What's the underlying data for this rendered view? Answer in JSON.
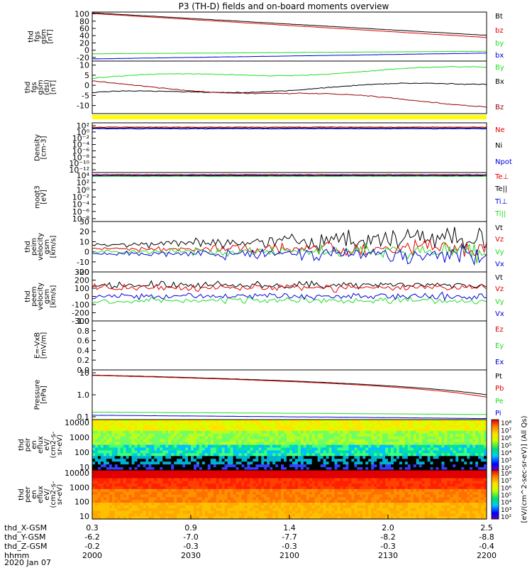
{
  "title": "P3 (TH-D) fields and on-board moments overview",
  "colors": {
    "black": "#000000",
    "red": "#e00000",
    "green": "#22dd22",
    "blue": "#0000dd",
    "yellow": "#ffff00"
  },
  "chart_data": [
    {
      "type": "line",
      "id": "fgs_mag",
      "ylabel": [
        "thd",
        "fgs",
        "gsm",
        "[nT]"
      ],
      "ylim": [
        -30,
        105
      ],
      "yticks": [
        "100",
        "80",
        "60",
        "40",
        "20",
        "0",
        "-20"
      ],
      "ytick_values": [
        100,
        80,
        60,
        40,
        20,
        0,
        -20
      ],
      "series": [
        {
          "name": "Bt",
          "color": "#000000",
          "start": 103,
          "end": 41
        },
        {
          "name": "bz",
          "color": "#e00000",
          "start": 101,
          "end": 35
        },
        {
          "name": "by",
          "color": "#22dd22",
          "start": -10,
          "end": -3
        },
        {
          "name": "bx",
          "color": "#0000dd",
          "start": -24,
          "end": -8
        }
      ]
    },
    {
      "type": "line",
      "id": "fgs_gsm",
      "ylabel": [
        "thd",
        "fgs",
        "gsm",
        "(dsl)",
        "[nT]"
      ],
      "ylim": [
        -14,
        12
      ],
      "yticks": [
        "10",
        "5",
        "0",
        "-5",
        "-10"
      ],
      "ytick_values": [
        10,
        5,
        0,
        -5,
        -10
      ],
      "series": [
        {
          "name": "By",
          "color": "#22dd22",
          "start": 3.5,
          "end": 8.5
        },
        {
          "name": "Bx",
          "color": "#000000",
          "start": -4.5,
          "end": 1
        },
        {
          "name": "Bz",
          "color": "#990000",
          "start": 1,
          "end": -9.5
        }
      ]
    },
    {
      "type": "line",
      "id": "density",
      "ylabel": [
        "Density",
        "[cm-3]"
      ],
      "scale": "log",
      "yticks": [
        "10²",
        "10⁰",
        "10⁻²",
        "10⁻⁴",
        "10⁻⁶",
        "10⁻⁸",
        "10⁻¹⁰",
        "10⁻¹²"
      ],
      "series": [
        {
          "name": "Ne",
          "color": "#e00000"
        },
        {
          "name": "Ni",
          "color": "#000000"
        },
        {
          "name": "Npot",
          "color": "#0000dd"
        }
      ]
    },
    {
      "type": "line",
      "id": "temperature",
      "ylabel": [
        "moqt3",
        "[eV]"
      ],
      "scale": "log",
      "yticks": [
        "10⁴",
        "10²",
        "10⁰",
        "10⁻²",
        "10⁻⁴",
        "10⁻⁶",
        "10⁻⁸"
      ],
      "series": [
        {
          "name": "Te⊥",
          "color": "#e00000"
        },
        {
          "name": "Te||",
          "color": "#000000"
        },
        {
          "name": "Ti⊥",
          "color": "#0000dd"
        },
        {
          "name": "Ti||",
          "color": "#22dd22"
        }
      ]
    },
    {
      "type": "line",
      "id": "peim_velocity",
      "ylabel": [
        "thd",
        "peim",
        "velocity",
        "gsm",
        "[km/s]"
      ],
      "ylim": [
        -20,
        30
      ],
      "yticks": [
        "30",
        "20",
        "10",
        "0",
        "-10",
        "-20"
      ],
      "ytick_values": [
        30,
        20,
        10,
        0,
        -10,
        -20
      ],
      "series": [
        {
          "name": "Vt",
          "color": "#000000"
        },
        {
          "name": "Vz",
          "color": "#e00000"
        },
        {
          "name": "Vy",
          "color": "#22dd22"
        },
        {
          "name": "Vx",
          "color": "#0000dd"
        }
      ]
    },
    {
      "type": "line",
      "id": "peem_velocity",
      "ylabel": [
        "thd",
        "peem",
        "velocity",
        "gsm",
        "[km/s]"
      ],
      "ylim": [
        -300,
        300
      ],
      "yticks": [
        "300",
        "200",
        "100",
        "0",
        "-100",
        "-200",
        "-300"
      ],
      "ytick_values": [
        300,
        200,
        100,
        0,
        -100,
        -200,
        -300
      ],
      "series": [
        {
          "name": "Vt",
          "color": "#000000"
        },
        {
          "name": "Vz",
          "color": "#e00000"
        },
        {
          "name": "Vy",
          "color": "#22dd22"
        },
        {
          "name": "Vx",
          "color": "#0000dd"
        }
      ]
    },
    {
      "type": "line",
      "id": "efield",
      "ylabel": [
        "E=-VxB",
        "[mV/m]"
      ],
      "ylim": [
        0,
        1.0
      ],
      "yticks": [
        "1.0",
        "0.8",
        "0.6",
        "0.4",
        "0.2",
        "0.0"
      ],
      "ytick_values": [
        1.0,
        0.8,
        0.6,
        0.4,
        0.2,
        0.0
      ],
      "series": [
        {
          "name": "Ez",
          "color": "#e00000"
        },
        {
          "name": "Ey",
          "color": "#22dd22"
        },
        {
          "name": "Ex",
          "color": "#0000dd"
        }
      ]
    },
    {
      "type": "line",
      "id": "pressure",
      "ylabel": [
        "Pressure",
        "[nPa]"
      ],
      "scale": "log",
      "ylim": [
        0.1,
        10
      ],
      "yticks": [
        "10",
        "1.0",
        "0.1"
      ],
      "series": [
        {
          "name": "Pt",
          "color": "#000000",
          "start": 6.2,
          "end": 1.0
        },
        {
          "name": "Pb",
          "color": "#e00000",
          "start": 6.0,
          "end": 0.8
        },
        {
          "name": "Pe",
          "color": "#22dd22",
          "start": 0.2,
          "end": 0.16
        },
        {
          "name": "Pi",
          "color": "#0000dd",
          "start": 0.15,
          "end": 0.11
        }
      ]
    },
    {
      "type": "heatmap",
      "id": "peir_eflux",
      "ylabel": [
        "thd",
        "peir",
        "en",
        "eflux",
        "eV/",
        "(cm2-s-",
        "sr-eV)"
      ],
      "yticks": [
        "10000",
        "1000",
        "100",
        "10"
      ]
    },
    {
      "type": "heatmap",
      "id": "peer_eflux",
      "ylabel": [
        "thd",
        "peer",
        "en",
        "eflux",
        "eV/",
        "(cm2-s-",
        "sr-eV)"
      ],
      "yticks": [
        "10000",
        "1000",
        "100",
        "10"
      ]
    }
  ],
  "colorbar": {
    "upper_ticks": [
      "10⁸",
      "10⁷",
      "10⁶",
      "10⁵",
      "10⁴",
      "10³",
      "10²"
    ],
    "lower_ticks": [
      "10⁸",
      "10⁷",
      "10⁶",
      "10⁵",
      "10⁴",
      "10³",
      "10²"
    ],
    "label": "[eV/(cm^2-sec-sr-eV)] (All Qs)"
  },
  "x_axis": {
    "rows": [
      {
        "label": "thd_X-GSM",
        "values": [
          "0.3",
          "0.9",
          "1.4",
          "2.0",
          "2.5"
        ]
      },
      {
        "label": "thd_Y-GSM",
        "values": [
          "-6.2",
          "-7.0",
          "-7.7",
          "-8.2",
          "-8.8"
        ]
      },
      {
        "label": "thd_Z-GSM",
        "values": [
          "-0.2",
          "-0.3",
          "-0.3",
          "-0.3",
          "-0.4"
        ]
      },
      {
        "label": "hhmm",
        "values": [
          "2000",
          "2030",
          "2100",
          "2130",
          "2200"
        ]
      }
    ],
    "date": "2020 Jan 07"
  }
}
